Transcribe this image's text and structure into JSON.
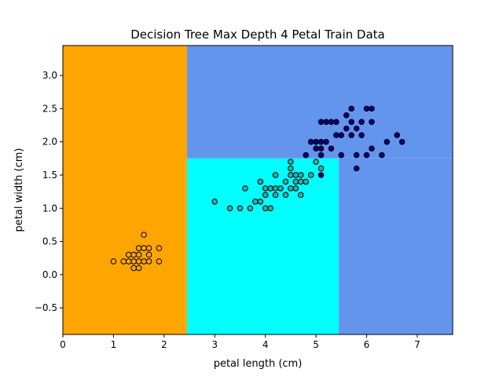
{
  "chart_data": {
    "type": "scatter",
    "title": "Decision Tree Max Depth 4 Petal Train Data",
    "xlabel": "petal length (cm)",
    "ylabel": "petal width (cm)",
    "xlim": [
      0,
      7.7
    ],
    "ylim": [
      -0.9,
      3.45
    ],
    "x_ticks": [
      0,
      1,
      2,
      3,
      4,
      5,
      6,
      7
    ],
    "y_ticks": [
      -0.5,
      0.0,
      0.5,
      1.0,
      1.5,
      2.0,
      2.5,
      3.0
    ],
    "x_tick_labels": [
      "0",
      "1",
      "2",
      "3",
      "4",
      "5",
      "6",
      "7"
    ],
    "y_tick_labels": [
      "−0.5",
      "0.0",
      "0.5",
      "1.0",
      "1.5",
      "2.0",
      "2.5",
      "3.0"
    ],
    "grid": false,
    "decision_regions": [
      {
        "x_range": [
          0,
          2.45
        ],
        "y_range": [
          -0.9,
          3.45
        ],
        "color": "#ffa500"
      },
      {
        "x_range": [
          2.45,
          7.7
        ],
        "y_range": [
          1.75,
          3.45
        ],
        "color": "#6495ed"
      },
      {
        "x_range": [
          2.45,
          5.45
        ],
        "y_range": [
          -0.9,
          1.75
        ],
        "color": "#00ffff"
      },
      {
        "x_range": [
          5.45,
          7.7
        ],
        "y_range": [
          -0.9,
          1.75
        ],
        "color": "#6495ed"
      }
    ],
    "series": [
      {
        "color": "#ffa500",
        "points": [
          [
            1.0,
            0.2
          ],
          [
            1.2,
            0.2
          ],
          [
            1.3,
            0.2
          ],
          [
            1.3,
            0.3
          ],
          [
            1.4,
            0.2
          ],
          [
            1.4,
            0.3
          ],
          [
            1.4,
            0.1
          ],
          [
            1.5,
            0.2
          ],
          [
            1.5,
            0.1
          ],
          [
            1.5,
            0.4
          ],
          [
            1.5,
            0.3
          ],
          [
            1.6,
            0.2
          ],
          [
            1.6,
            0.4
          ],
          [
            1.6,
            0.6
          ],
          [
            1.7,
            0.2
          ],
          [
            1.7,
            0.3
          ],
          [
            1.7,
            0.4
          ],
          [
            1.9,
            0.2
          ],
          [
            1.9,
            0.4
          ]
        ]
      },
      {
        "color": "#20b2aa",
        "points": [
          [
            3.0,
            1.1
          ],
          [
            3.3,
            1.0
          ],
          [
            3.5,
            1.0
          ],
          [
            3.6,
            1.3
          ],
          [
            3.7,
            1.0
          ],
          [
            3.8,
            1.1
          ],
          [
            3.9,
            1.1
          ],
          [
            3.9,
            1.4
          ],
          [
            4.0,
            1.0
          ],
          [
            4.0,
            1.2
          ],
          [
            4.0,
            1.3
          ],
          [
            4.1,
            1.0
          ],
          [
            4.1,
            1.3
          ],
          [
            4.2,
            1.3
          ],
          [
            4.2,
            1.5
          ],
          [
            4.2,
            1.2
          ],
          [
            4.3,
            1.3
          ],
          [
            4.4,
            1.2
          ],
          [
            4.4,
            1.4
          ],
          [
            4.5,
            1.3
          ],
          [
            4.5,
            1.5
          ],
          [
            4.5,
            1.6
          ],
          [
            4.6,
            1.3
          ],
          [
            4.6,
            1.4
          ],
          [
            4.6,
            1.5
          ],
          [
            4.7,
            1.2
          ],
          [
            4.7,
            1.4
          ],
          [
            4.7,
            1.5
          ],
          [
            4.8,
            1.4
          ],
          [
            4.9,
            1.5
          ],
          [
            5.0,
            1.7
          ],
          [
            5.1,
            1.6
          ],
          [
            4.5,
            1.7
          ]
        ]
      },
      {
        "color": "#000080",
        "points": [
          [
            4.8,
            1.8
          ],
          [
            4.9,
            2.0
          ],
          [
            5.0,
            1.9
          ],
          [
            5.0,
            2.0
          ],
          [
            5.1,
            1.9
          ],
          [
            5.1,
            2.0
          ],
          [
            5.1,
            2.3
          ],
          [
            5.1,
            1.8
          ],
          [
            5.2,
            2.0
          ],
          [
            5.2,
            2.3
          ],
          [
            5.3,
            2.3
          ],
          [
            5.3,
            1.9
          ],
          [
            5.4,
            2.1
          ],
          [
            5.4,
            2.3
          ],
          [
            5.5,
            1.8
          ],
          [
            5.5,
            2.1
          ],
          [
            5.6,
            2.2
          ],
          [
            5.6,
            2.4
          ],
          [
            5.7,
            2.3
          ],
          [
            5.7,
            2.5
          ],
          [
            5.7,
            2.1
          ],
          [
            5.8,
            2.2
          ],
          [
            5.8,
            1.8
          ],
          [
            5.8,
            1.6
          ],
          [
            5.9,
            2.1
          ],
          [
            5.9,
            2.3
          ],
          [
            6.0,
            1.8
          ],
          [
            6.0,
            2.5
          ],
          [
            6.1,
            2.3
          ],
          [
            6.1,
            1.9
          ],
          [
            6.1,
            2.5
          ],
          [
            6.3,
            1.8
          ],
          [
            6.4,
            2.0
          ],
          [
            6.6,
            2.1
          ],
          [
            6.7,
            2.0
          ],
          [
            5.1,
            1.5
          ]
        ]
      }
    ]
  }
}
